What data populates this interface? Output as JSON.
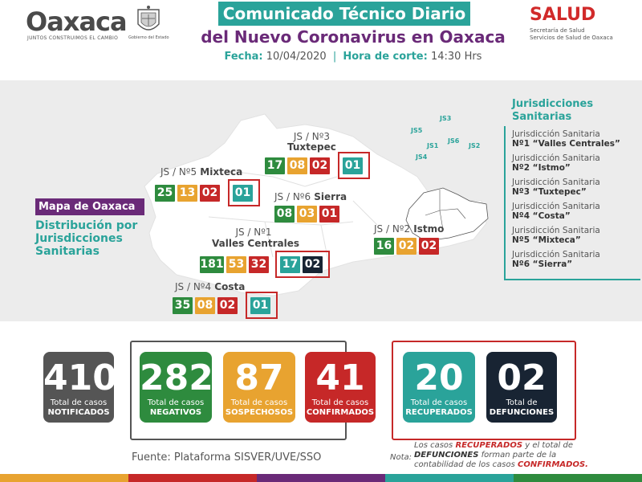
{
  "header": {
    "logo_word": "Oaxaca",
    "logo_tagline": "JUNTOS CONSTRUIMOS EL CAMBIO",
    "seal_caption": "Gobierno del Estado",
    "title_line1": "Comunicado Técnico Diario",
    "title_line2": "del Nuevo Coronavirus en Oaxaca",
    "fecha_label": "Fecha:",
    "fecha_value": "10/04/2020",
    "separator": "|",
    "hora_label": "Hora de corte:",
    "hora_value": "14:30 Hrs",
    "salud_word": "SALUD",
    "salud_sub1": "Secretaría de Salud",
    "salud_sub2": "Servicios de Salud de Oaxaca"
  },
  "map_section": {
    "mapa_label": "Mapa de Oaxaca",
    "dist_line1": "Distribución por",
    "dist_line2": "Jurisdicciones",
    "dist_line3": "Sanitarias"
  },
  "jurisdictions": {
    "tuxtepec": {
      "label_a": "JS / Nº3",
      "label_b": "Tuxtepec",
      "negativos": "17",
      "sospechosos": "08",
      "confirmados": "02",
      "recuperados": "01"
    },
    "mixteca": {
      "label_a": "JS / Nº5",
      "label_b": "Mixteca",
      "negativos": "25",
      "sospechosos": "13",
      "confirmados": "02",
      "recuperados": "01"
    },
    "sierra": {
      "label_a": "JS / Nº6",
      "label_b": "Sierra",
      "negativos": "08",
      "sospechosos": "03",
      "confirmados": "01"
    },
    "istmo": {
      "label_a": "JS / Nº2",
      "label_b": "Istmo",
      "negativos": "16",
      "sospechosos": "02",
      "confirmados": "02"
    },
    "valles": {
      "label_a": "JS / Nº1",
      "label_b": "Valles Centrales",
      "negativos": "181",
      "sospechosos": "53",
      "confirmados": "32",
      "recuperados": "17",
      "defunciones": "02"
    },
    "costa": {
      "label_a": "JS / Nº4",
      "label_b": "Costa",
      "negativos": "35",
      "sospechosos": "08",
      "confirmados": "02",
      "recuperados": "01"
    }
  },
  "minimap_labels": [
    "JS3",
    "JS5",
    "JS1",
    "JS6",
    "JS2",
    "JS4"
  ],
  "legend": {
    "title1": "Jurisdicciones",
    "title2": "Sanitarias",
    "items": [
      {
        "line1": "Jurisdicción Sanitaria",
        "line2": "Nº1 “Valles Centrales”"
      },
      {
        "line1": "Jurisdicción Sanitaria",
        "line2": "Nº2 “Istmo”"
      },
      {
        "line1": "Jurisdicción Sanitaria",
        "line2": "Nº3 “Tuxtepec”"
      },
      {
        "line1": "Jurisdicción Sanitaria",
        "line2": "Nº4 “Costa”"
      },
      {
        "line1": "Jurisdicción Sanitaria",
        "line2": "Nº5 “Mixteca”"
      },
      {
        "line1": "Jurisdicción Sanitaria",
        "line2": "Nº6 “Sierra”"
      }
    ]
  },
  "stats": {
    "notificados": {
      "num": "410",
      "l1": "Total de casos",
      "l2": "NOTIFICADOS"
    },
    "negativos": {
      "num": "282",
      "l1": "Total de casos",
      "l2": "NEGATIVOS"
    },
    "sospechosos": {
      "num": "87",
      "l1": "Total de casos",
      "l2": "SOSPECHOSOS"
    },
    "confirmados": {
      "num": "41",
      "l1": "Total de casos",
      "l2": "CONFIRMADOS"
    },
    "recuperados": {
      "num": "20",
      "l1": "Total de casos",
      "l2": "RECUPERADOS"
    },
    "defunciones": {
      "num": "02",
      "l1": "Total de",
      "l2": "DEFUNCIONES"
    }
  },
  "footer_text": {
    "fuente": "Fuente: Plataforma SISVER/UVE/SSO",
    "nota_label": "Nota:",
    "nota_p1": "Los casos",
    "nota_w1": "RECUPERADOS",
    "nota_p2": "y el total de",
    "nota_w2": "DEFUNCIONES",
    "nota_p3": "forman parte de la contabilidad de los casos",
    "nota_w3": "CONFIRMADOS."
  },
  "colors": {
    "teal": "#2aa39a",
    "purple": "#6a2a78",
    "green": "#2e8b3e",
    "orange": "#e8a330",
    "red": "#c62828",
    "navy": "#182433",
    "gray": "#555555"
  },
  "icons": {
    "seal": "coat-of-arms-icon"
  }
}
